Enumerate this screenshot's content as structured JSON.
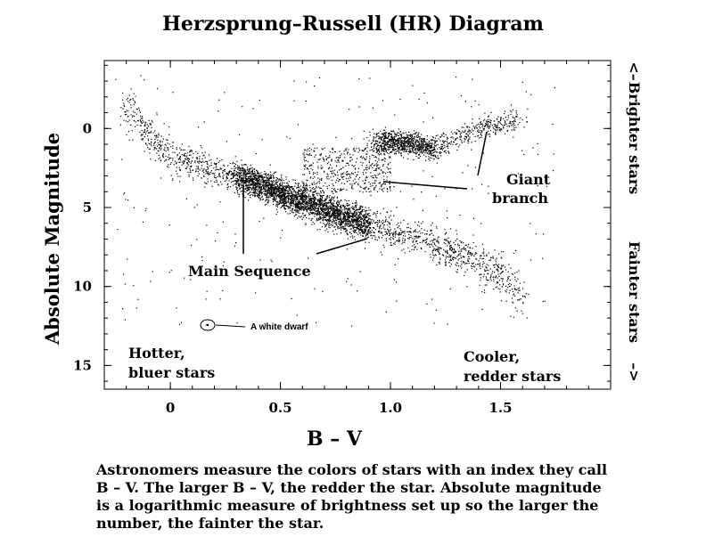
{
  "title": "Herzsprung–Russell (HR) Diagram",
  "chart_data": {
    "type": "scatter",
    "title": "Herzsprung–Russell (HR) Diagram",
    "xlabel": "B – V",
    "ylabel": "Absolute Magnitude",
    "xlim": [
      -0.3,
      2.0
    ],
    "ylim": [
      16.5,
      -4.3
    ],
    "y_inverted": true,
    "x_ticks": [
      "0",
      "0.5",
      "1.0",
      "1.5"
    ],
    "x_tick_values": [
      0,
      0.5,
      1.0,
      1.5
    ],
    "y_ticks": [
      "0",
      "5",
      "10",
      "15"
    ],
    "y_tick_values": [
      0,
      5,
      10,
      15
    ],
    "grid": false,
    "right_labels": {
      "top": "Brighter stars",
      "bottom": "Fainter stars"
    },
    "annotations": {
      "giant_branch": [
        "Giant",
        "branch"
      ],
      "main_sequence": "Main Sequence",
      "white_dwarf": "A white dwarf",
      "hotter": [
        "Hotter,",
        "bluer stars"
      ],
      "cooler": [
        "Cooler,",
        "redder stars"
      ]
    },
    "white_dwarf_point": {
      "x": 0.16,
      "y": 12.4
    },
    "series": [
      {
        "region": "main sequence",
        "points": [
          [
            -0.2,
            -1.5
          ],
          [
            -0.1,
            0.5
          ],
          [
            0,
            1.8
          ],
          [
            0.2,
            2.6
          ],
          [
            0.4,
            3.5
          ],
          [
            0.6,
            4.6
          ],
          [
            0.8,
            5.6
          ],
          [
            1.0,
            6.5
          ],
          [
            1.2,
            7.3
          ],
          [
            1.4,
            8.5
          ],
          [
            1.5,
            9.5
          ],
          [
            1.6,
            10.5
          ]
        ]
      },
      {
        "region": "giant branch",
        "points": [
          [
            0.9,
            0.9
          ],
          [
            1.0,
            0.8
          ],
          [
            1.1,
            1.0
          ],
          [
            1.2,
            1.3
          ],
          [
            1.3,
            0.6
          ],
          [
            1.4,
            0.0
          ],
          [
            1.5,
            -0.3
          ],
          [
            1.6,
            -0.7
          ]
        ]
      }
    ]
  },
  "caption": [
    "Astronomers measure the colors of stars with an index they call",
    "B – V.  The larger B – V, the redder the star.   Absolute magnitude",
    "is a logarithmic measure of brightness set up so the larger the",
    "number, the fainter the star."
  ]
}
